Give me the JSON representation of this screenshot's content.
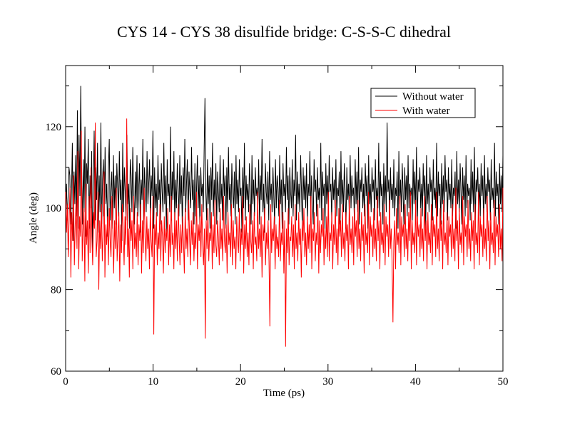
{
  "chart_data": {
    "type": "line",
    "title": "CYS 14 - CYS 38 disulfide bridge: C-S-S-C dihedral",
    "xlabel": "Time (ps)",
    "ylabel": "Angle (deg)",
    "xlim": [
      0,
      50
    ],
    "ylim": [
      60,
      135
    ],
    "x_ticks": [
      0,
      10,
      20,
      30,
      40,
      50
    ],
    "x_tick_labels": [
      "0",
      "10",
      "20",
      "30",
      "40",
      "50"
    ],
    "y_ticks": [
      60,
      80,
      100,
      120
    ],
    "y_tick_labels": [
      "60",
      "80",
      "100",
      "120"
    ],
    "grid": false,
    "legend_position": "top-right",
    "x_step": 0.1,
    "series": [
      {
        "name": "Without water",
        "color": "#000000",
        "values": [
          99,
          106,
          97,
          103,
          110,
          108,
          96,
          104,
          116,
          92,
          109,
          101,
          113,
          98,
          124,
          95,
          118,
          103,
          130,
          107,
          96,
          112,
          99,
          120,
          93,
          111,
          106,
          117,
          95,
          108,
          100,
          114,
          89,
          105,
          119,
          97,
          110,
          102,
          116,
          94,
          108,
          99,
          121,
          96,
          107,
          112,
          98,
          115,
          101,
          106,
          93,
          110,
          117,
          97,
          104,
          109,
          95,
          113,
          100,
          108,
          96,
          111,
          105,
          98,
          114,
          102,
          107,
          92,
          116,
          99,
          110,
          104,
          97,
          118,
          101,
          106,
          95,
          112,
          108,
          99,
          115,
          103,
          96,
          109,
          100,
          113,
          98,
          105,
          111,
          94,
          107,
          102,
          117,
          96,
          110,
          104,
          99,
          114,
          101,
          106,
          112,
          97,
          108,
          103,
          119,
          95,
          110,
          100,
          106,
          98,
          113,
          102,
          107,
          96,
          111,
          104,
          99,
          116,
          101,
          108,
          94,
          112,
          103,
          106,
          99,
          120,
          97,
          109,
          102,
          114,
          96,
          107,
          100,
          111,
          105,
          98,
          113,
          101,
          108,
          95,
          110,
          103,
          117,
          99,
          106,
          112,
          97,
          109,
          104,
          100,
          115,
          102,
          107,
          96,
          111,
          98,
          105,
          113,
          100,
          108,
          94,
          110,
          103,
          106,
          99,
          114,
          127,
          104,
          97,
          112,
          101,
          108,
          95,
          110,
          102,
          116,
          98,
          107,
          100,
          111,
          96,
          109,
          104,
          99,
          113,
          101,
          106,
          97,
          112,
          103,
          108,
          95,
          110,
          99,
          115,
          102,
          106,
          98,
          111,
          104,
          100,
          109,
          96,
          113,
          101,
          107,
          99,
          112,
          103,
          105,
          94,
          110,
          100,
          116,
          97,
          108,
          102,
          106,
          99,
          111,
          104,
          96,
          113,
          101,
          107,
          98,
          110,
          103,
          105,
          100,
          112,
          96,
          108,
          102,
          117,
          99,
          106,
          94,
          111,
          104,
          101,
          109,
          97,
          114,
          102,
          106,
          99,
          110,
          103,
          96,
          112,
          100,
          108,
          105,
          98,
          113,
          101,
          107,
          95,
          111,
          103,
          106,
          99,
          115,
          102,
          108,
          96,
          110,
          104,
          100,
          112,
          98,
          107,
          103,
          118,
          97,
          109,
          101,
          106,
          99,
          113,
          104,
          95,
          110,
          102,
          108,
          100,
          111,
          97,
          106,
          103,
          114,
          99,
          108,
          101,
          96,
          112,
          104,
          107,
          98,
          110,
          102,
          105,
          100,
          116,
          97,
          109,
          103,
          106,
          94,
          111,
          101,
          108,
          99,
          113,
          104,
          106,
          97,
          110,
          102,
          107,
          100,
          112,
          98,
          105,
          103,
          109,
          96,
          114,
          101,
          107,
          99,
          111,
          104,
          95,
          110,
          102,
          106,
          98,
          113,
          100,
          108,
          103,
          105,
          97,
          112,
          101,
          109,
          99,
          115,
          96,
          107,
          104,
          110,
          100,
          106,
          98,
          111,
          103,
          108,
          95,
          113,
          101,
          106,
          99,
          110,
          104,
          107,
          97,
          112,
          102,
          105,
          100,
          116,
          98,
          109,
          103,
          106,
          96,
          111,
          101,
          108,
          99,
          121,
          104,
          107,
          97,
          110,
          102,
          106,
          100,
          112,
          98,
          105,
          103,
          109,
          95,
          114,
          101,
          107,
          99,
          111,
          104,
          96,
          110,
          102,
          108,
          98,
          113,
          100,
          106,
          103,
          105,
          97,
          112,
          101,
          109,
          99,
          115,
          96,
          107,
          104,
          110,
          100,
          106,
          98,
          111,
          103,
          108,
          95,
          113,
          101,
          106,
          99,
          110,
          104,
          107,
          97,
          112,
          102,
          105,
          100,
          116,
          98,
          109,
          103,
          106,
          96,
          111,
          101,
          108,
          99,
          113,
          104,
          107,
          97,
          110,
          102,
          106,
          100,
          112,
          98,
          105,
          103,
          109,
          95,
          114,
          101,
          107,
          99,
          111,
          104,
          96,
          110,
          102,
          108,
          98,
          113,
          100,
          106,
          103,
          105,
          97,
          112,
          101,
          109,
          99,
          115,
          96,
          107,
          104,
          110,
          100,
          106,
          98,
          111,
          103,
          108,
          95,
          113,
          101,
          106,
          99,
          110,
          104,
          107,
          97,
          112,
          102,
          105,
          100,
          116,
          98,
          109,
          103,
          106,
          96,
          111,
          101,
          108,
          99,
          113
        ]
      },
      {
        "name": "With water",
        "color": "#ff0000",
        "values": [
          104,
          94,
          101,
          88,
          97,
          105,
          83,
          99,
          92,
          108,
          86,
          96,
          102,
          90,
          114,
          85,
          98,
          93,
          119,
          87,
          95,
          100,
          82,
          106,
          91,
          97,
          84,
          103,
          89,
          110,
          93,
          86,
          99,
          95,
          121,
          88,
          92,
          104,
          80,
          97,
          90,
          101,
          87,
          94,
          109,
          83,
          96,
          91,
          98,
          86,
          100,
          92,
          88,
          103,
          95,
          84,
          97,
          90,
          105,
          87,
          93,
          99,
          82,
          96,
          89,
          101,
          94,
          86,
          98,
          91,
          122,
          88,
          95,
          83,
          100,
          92,
          97,
          85,
          103,
          90,
          94,
          88,
          99,
          86,
          96,
          92,
          101,
          84,
          97,
          89,
          105,
          93,
          87,
          98,
          90,
          95,
          85,
          100,
          92,
          88,
          103,
          69,
          96,
          91,
          99,
          86,
          94,
          90,
          101,
          87,
          97,
          93,
          84,
          98,
          89,
          95,
          92,
          100,
          86,
          96,
          88,
          103,
          91,
          94,
          85,
          99,
          90,
          97,
          87,
          101,
          93,
          86,
          96,
          89,
          98,
          92,
          84,
          100,
          90,
          95,
          88,
          102,
          93,
          86,
          97,
          91,
          99,
          87,
          94,
          90,
          104,
          85,
          96,
          92,
          98,
          88,
          101,
          91,
          86,
          95,
          68,
          97,
          90,
          100,
          87,
          94,
          92,
          99,
          85,
          96,
          89,
          102,
          91,
          88,
          97,
          93,
          86,
          100,
          90,
          95,
          87,
          103,
          92,
          89,
          96,
          84,
          99,
          91,
          94,
          88,
          101,
          86,
          97,
          90,
          93,
          85,
          98,
          92,
          89,
          100,
          87,
          95,
          91,
          103,
          84,
          96,
          90,
          98,
          88,
          94,
          86,
          101,
          92,
          89,
          97,
          85,
          99,
          91,
          93,
          87,
          104,
          90,
          95,
          88,
          98,
          83,
          96,
          92,
          100,
          86,
          94,
          90,
          97,
          87,
          71,
          101,
          89,
          95,
          92,
          98,
          85,
          96,
          90,
          93,
          88,
          102,
          87,
          94,
          91,
          99,
          84,
          97,
          66,
          95,
          89,
          100,
          86,
          93,
          92,
          98,
          88,
          96,
          85,
          101,
          90,
          94,
          87,
          99,
          91,
          95,
          83,
          97,
          92,
          100,
          88,
          94,
          86,
          98,
          90,
          96,
          89,
          103,
          85,
          95,
          92,
          99,
          87,
          94,
          91,
          101,
          84,
          97,
          89,
          96,
          93,
          100,
          86,
          95,
          90,
          98,
          88,
          104,
          87,
          94,
          92,
          99,
          85,
          96,
          91,
          102,
          89,
          95,
          86,
          100,
          93,
          97,
          88,
          101,
          90,
          94,
          87,
          99,
          92,
          96,
          85,
          103,
          91,
          95,
          89,
          98,
          86,
          100,
          93,
          97,
          88,
          102,
          90,
          95,
          87,
          99,
          92,
          96,
          84,
          101,
          91,
          94,
          89,
          104,
          86,
          98,
          93,
          96,
          88,
          100,
          90,
          95,
          87,
          103,
          92,
          97,
          85,
          99,
          91,
          94,
          89,
          101,
          86,
          98,
          93,
          96,
          88,
          102,
          90,
          95,
          87,
          72,
          92,
          97,
          85,
          100,
          91,
          94,
          89,
          103,
          86,
          98,
          93,
          96,
          88,
          101,
          90,
          95,
          87,
          99,
          92,
          104,
          85,
          97,
          91,
          94,
          89,
          102,
          86,
          98,
          93,
          96,
          88,
          100,
          90,
          95,
          87,
          103,
          92,
          97,
          85,
          99,
          91,
          94,
          89,
          101,
          86,
          98,
          93,
          96,
          88,
          104,
          90,
          95,
          87,
          100,
          92,
          97,
          85,
          102,
          91,
          94,
          89,
          99,
          86,
          98,
          93,
          96,
          88,
          101,
          90,
          95,
          87,
          105,
          92,
          97,
          85,
          100,
          91,
          94,
          89,
          103,
          86,
          98,
          93,
          96,
          88,
          102,
          90,
          95,
          87,
          99,
          92,
          97,
          85,
          101,
          91,
          94,
          89,
          104,
          86,
          98,
          93,
          96,
          88,
          100,
          90,
          95,
          87,
          103,
          92,
          97,
          85,
          99,
          91,
          94,
          89,
          102,
          86,
          98,
          93,
          96,
          88,
          101,
          90,
          95,
          87,
          105
        ]
      }
    ]
  }
}
